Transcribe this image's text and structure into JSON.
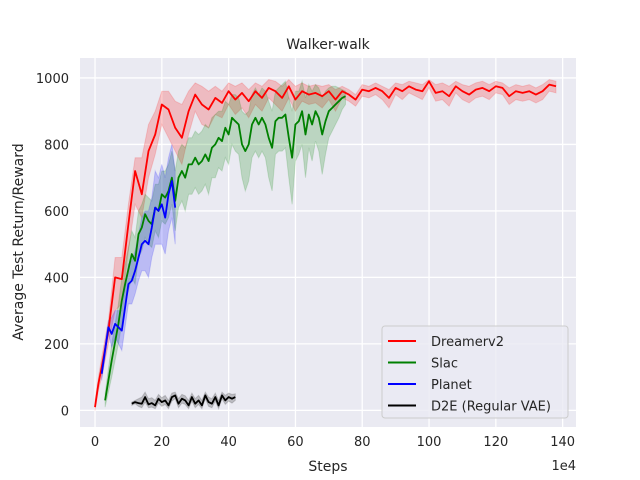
{
  "chart_data": {
    "type": "line",
    "title": "Walker-walk",
    "xlabel": "Steps",
    "ylabel": "Average Test Return/Reward",
    "x_multiplier_label": "1e4",
    "xlim": [
      -4.5,
      144
    ],
    "ylim": [
      -50,
      1060
    ],
    "xticks": [
      0,
      20,
      40,
      60,
      80,
      100,
      120,
      140
    ],
    "yticks": [
      0,
      200,
      400,
      600,
      800,
      1000
    ],
    "grid": true,
    "legend_position": "lower-right",
    "series": [
      {
        "name": "Dreamerv2",
        "color": "#ff0000",
        "x": [
          0,
          1,
          2,
          4,
          6,
          8,
          10,
          12,
          14,
          16,
          18,
          20,
          22,
          24,
          26,
          28,
          30,
          32,
          34,
          36,
          38,
          40,
          42,
          44,
          46,
          48,
          50,
          52,
          54,
          56,
          58,
          60,
          62,
          64,
          66,
          68,
          70,
          72,
          74,
          76,
          78,
          80,
          82,
          84,
          86,
          88,
          90,
          92,
          94,
          96,
          98,
          100,
          102,
          104,
          106,
          108,
          110,
          112,
          114,
          116,
          118,
          120,
          122,
          124,
          126,
          128,
          130,
          132,
          134,
          136,
          138
        ],
        "y": [
          10,
          80,
          130,
          240,
          400,
          395,
          560,
          720,
          650,
          780,
          830,
          920,
          905,
          850,
          820,
          900,
          950,
          920,
          905,
          940,
          925,
          960,
          935,
          955,
          930,
          960,
          940,
          970,
          960,
          940,
          975,
          935,
          960,
          950,
          955,
          945,
          960,
          935,
          960,
          950,
          935,
          965,
          960,
          970,
          960,
          940,
          970,
          960,
          975,
          965,
          960,
          990,
          955,
          960,
          945,
          975,
          960,
          950,
          965,
          970,
          960,
          975,
          970,
          945,
          960,
          955,
          960,
          950,
          960,
          980,
          975
        ],
        "upper": [
          30,
          100,
          160,
          270,
          460,
          460,
          620,
          760,
          760,
          860,
          900,
          960,
          960,
          930,
          920,
          960,
          985,
          975,
          960,
          975,
          960,
          985,
          975,
          985,
          965,
          985,
          975,
          995,
          990,
          975,
          995,
          975,
          985,
          975,
          980,
          975,
          980,
          965,
          975,
          965,
          950,
          980,
          975,
          985,
          975,
          965,
          985,
          980,
          990,
          985,
          980,
          995,
          980,
          985,
          975,
          990,
          980,
          975,
          985,
          990,
          980,
          990,
          985,
          970,
          980,
          975,
          980,
          970,
          980,
          995,
          990
        ],
        "lower": [
          0,
          60,
          100,
          200,
          300,
          320,
          480,
          620,
          580,
          700,
          770,
          860,
          820,
          780,
          740,
          830,
          900,
          860,
          850,
          890,
          880,
          920,
          890,
          910,
          880,
          920,
          900,
          940,
          920,
          900,
          940,
          900,
          930,
          920,
          925,
          910,
          935,
          900,
          940,
          930,
          915,
          945,
          940,
          950,
          935,
          910,
          950,
          935,
          955,
          945,
          935,
          970,
          930,
          935,
          915,
          955,
          935,
          925,
          940,
          945,
          935,
          955,
          950,
          920,
          935,
          930,
          935,
          925,
          935,
          960,
          955
        ]
      },
      {
        "name": "Slac",
        "color": "#008000",
        "x": [
          3,
          5,
          7,
          8,
          9,
          11,
          12,
          13,
          14,
          15,
          16,
          17,
          18,
          19,
          20,
          21,
          22,
          23,
          24,
          25,
          26,
          27,
          28,
          29,
          30,
          31,
          32,
          33,
          34,
          35,
          36,
          37,
          38,
          39,
          40,
          41,
          42,
          43,
          44,
          45,
          46,
          47,
          48,
          49,
          50,
          51,
          52,
          53,
          54,
          55,
          56,
          57,
          58,
          59,
          60,
          61,
          62,
          63,
          64,
          65,
          66,
          67,
          68,
          69,
          70,
          71,
          72,
          73,
          74,
          75
        ],
        "y": [
          30,
          150,
          260,
          330,
          380,
          470,
          450,
          530,
          550,
          590,
          570,
          560,
          610,
          600,
          650,
          640,
          660,
          700,
          630,
          700,
          720,
          700,
          740,
          740,
          760,
          740,
          750,
          770,
          750,
          790,
          800,
          820,
          810,
          850,
          830,
          880,
          870,
          860,
          800,
          780,
          800,
          860,
          880,
          860,
          880,
          860,
          820,
          790,
          870,
          880,
          880,
          890,
          820,
          760,
          860,
          870,
          900,
          830,
          890,
          860,
          900,
          880,
          830,
          870,
          900,
          910,
          920,
          930,
          940,
          945
        ],
        "upper": [
          50,
          200,
          320,
          400,
          440,
          540,
          520,
          600,
          620,
          650,
          640,
          630,
          680,
          680,
          720,
          720,
          740,
          780,
          720,
          780,
          800,
          790,
          820,
          820,
          840,
          830,
          840,
          860,
          850,
          880,
          890,
          900,
          900,
          930,
          920,
          950,
          950,
          940,
          900,
          890,
          900,
          950,
          970,
          950,
          970,
          960,
          930,
          900,
          960,
          970,
          980,
          990,
          940,
          900,
          960,
          960,
          990,
          940,
          980,
          960,
          980,
          970,
          940,
          960,
          970,
          975,
          975,
          970,
          965,
          960
        ],
        "lower": [
          10,
          100,
          200,
          260,
          320,
          400,
          380,
          460,
          480,
          520,
          500,
          490,
          540,
          520,
          570,
          560,
          580,
          620,
          540,
          610,
          630,
          600,
          650,
          650,
          670,
          650,
          660,
          680,
          650,
          700,
          700,
          730,
          720,
          760,
          740,
          800,
          780,
          770,
          700,
          660,
          690,
          760,
          780,
          760,
          780,
          760,
          700,
          660,
          770,
          780,
          780,
          790,
          700,
          620,
          750,
          770,
          800,
          700,
          790,
          750,
          810,
          780,
          710,
          770,
          820,
          840,
          860,
          880,
          905,
          920
        ]
      },
      {
        "name": "Planet",
        "color": "#0000ff",
        "x": [
          2,
          4,
          5,
          6,
          8,
          10,
          11,
          12,
          13,
          14,
          15,
          16,
          17,
          18,
          19,
          20,
          21,
          22,
          23,
          24
        ],
        "y": [
          110,
          250,
          230,
          260,
          240,
          380,
          390,
          420,
          460,
          500,
          510,
          500,
          550,
          610,
          600,
          620,
          580,
          650,
          690,
          610
        ],
        "upper": [
          130,
          270,
          280,
          300,
          300,
          440,
          450,
          480,
          530,
          580,
          600,
          600,
          640,
          720,
          700,
          740,
          700,
          760,
          800,
          720
        ],
        "lower": [
          90,
          230,
          190,
          220,
          180,
          320,
          320,
          350,
          390,
          420,
          420,
          400,
          460,
          500,
          500,
          500,
          470,
          540,
          580,
          500
        ]
      },
      {
        "name": "D2E (Regular VAE)",
        "color": "#000000",
        "x": [
          11,
          12,
          13,
          14,
          15,
          16,
          17,
          18,
          19,
          20,
          21,
          22,
          23,
          24,
          25,
          26,
          27,
          28,
          29,
          30,
          31,
          32,
          33,
          34,
          35,
          36,
          37,
          38,
          39,
          40,
          41,
          42
        ],
        "y": [
          20,
          25,
          22,
          20,
          40,
          18,
          22,
          15,
          35,
          25,
          30,
          15,
          40,
          45,
          20,
          35,
          30,
          15,
          40,
          20,
          30,
          15,
          45,
          25,
          20,
          40,
          15,
          45,
          30,
          40,
          35,
          40
        ],
        "upper": [
          25,
          30,
          35,
          40,
          55,
          35,
          38,
          30,
          48,
          38,
          45,
          30,
          52,
          55,
          35,
          48,
          44,
          30,
          52,
          35,
          45,
          30,
          55,
          40,
          35,
          52,
          30,
          55,
          45,
          52,
          48,
          50
        ],
        "lower": [
          15,
          20,
          12,
          8,
          25,
          8,
          10,
          5,
          22,
          12,
          18,
          5,
          28,
          35,
          8,
          22,
          18,
          5,
          28,
          8,
          18,
          5,
          35,
          12,
          8,
          28,
          5,
          35,
          18,
          28,
          22,
          30
        ]
      }
    ]
  }
}
